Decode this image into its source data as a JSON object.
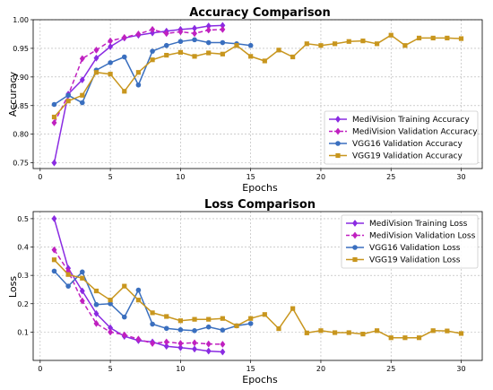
{
  "chart_data": [
    {
      "type": "line",
      "title": "Accuracy Comparison",
      "xlabel": "Epochs",
      "ylabel": "Accuracy",
      "xlim": [
        -0.5,
        31.5
      ],
      "ylim": [
        0.74,
        1.0
      ],
      "xticks": [
        0,
        5,
        10,
        15,
        20,
        25,
        30
      ],
      "yticks": [
        0.75,
        0.8,
        0.85,
        0.9,
        0.95,
        1.0
      ],
      "ytick_labels": [
        "0.75",
        "0.80",
        "0.85",
        "0.90",
        "0.95",
        "1.00"
      ],
      "grid": true,
      "legend_position": "lower-right",
      "series": [
        {
          "name": "MediVision Training Accuracy",
          "color": "#8a2be2",
          "marker": "diamond",
          "dashed": false,
          "x": [
            1,
            2,
            3,
            4,
            5,
            6,
            7,
            8,
            9,
            10,
            11,
            12,
            13
          ],
          "y": [
            0.75,
            0.87,
            0.895,
            0.933,
            0.953,
            0.968,
            0.973,
            0.977,
            0.98,
            0.983,
            0.985,
            0.989,
            0.99
          ]
        },
        {
          "name": "MediVision Validation Accuracy",
          "color": "#c020c0",
          "marker": "diamond",
          "dashed": true,
          "x": [
            1,
            2,
            3,
            4,
            5,
            6,
            7,
            8,
            9,
            10,
            11,
            12,
            13
          ],
          "y": [
            0.82,
            0.868,
            0.932,
            0.947,
            0.963,
            0.969,
            0.975,
            0.983,
            0.976,
            0.979,
            0.976,
            0.982,
            0.983
          ]
        },
        {
          "name": "VGG16 Validation Accuracy",
          "color": "#3a6fbf",
          "marker": "circle",
          "dashed": false,
          "x": [
            1,
            2,
            3,
            4,
            5,
            6,
            7,
            8,
            9,
            10,
            11,
            12,
            13,
            14,
            15
          ],
          "y": [
            0.852,
            0.868,
            0.855,
            0.912,
            0.925,
            0.935,
            0.886,
            0.945,
            0.955,
            0.962,
            0.965,
            0.96,
            0.96,
            0.958,
            0.955
          ]
        },
        {
          "name": "VGG19 Validation Accuracy",
          "color": "#c8961e",
          "marker": "square",
          "dashed": false,
          "x": [
            1,
            2,
            3,
            4,
            5,
            6,
            7,
            8,
            9,
            10,
            11,
            12,
            13,
            14,
            15,
            16,
            17,
            18,
            19,
            20,
            21,
            22,
            23,
            24,
            25,
            26,
            27,
            28,
            29,
            30
          ],
          "y": [
            0.83,
            0.858,
            0.868,
            0.908,
            0.905,
            0.875,
            0.908,
            0.93,
            0.938,
            0.943,
            0.936,
            0.942,
            0.94,
            0.955,
            0.936,
            0.928,
            0.947,
            0.935,
            0.958,
            0.955,
            0.958,
            0.962,
            0.963,
            0.958,
            0.973,
            0.955,
            0.968,
            0.968,
            0.968,
            0.967
          ]
        }
      ]
    },
    {
      "type": "line",
      "title": "Loss Comparison",
      "xlabel": "Epochs",
      "ylabel": "Loss",
      "xlim": [
        -0.5,
        31.5
      ],
      "ylim": [
        0.0,
        0.525
      ],
      "xticks": [
        0,
        5,
        10,
        15,
        20,
        25,
        30
      ],
      "yticks": [
        0.1,
        0.2,
        0.3,
        0.4,
        0.5
      ],
      "ytick_labels": [
        "0.1",
        "0.2",
        "0.3",
        "0.4",
        "0.5"
      ],
      "grid": true,
      "legend_position": "top-right",
      "series": [
        {
          "name": "MediVision Training Loss",
          "color": "#8a2be2",
          "marker": "diamond",
          "dashed": false,
          "x": [
            1,
            2,
            3,
            4,
            5,
            6,
            7,
            8,
            9,
            10,
            11,
            12,
            13
          ],
          "y": [
            0.5,
            0.325,
            0.245,
            0.165,
            0.115,
            0.085,
            0.07,
            0.065,
            0.05,
            0.045,
            0.04,
            0.033,
            0.03
          ]
        },
        {
          "name": "MediVision Validation Loss",
          "color": "#c020c0",
          "marker": "diamond",
          "dashed": true,
          "x": [
            1,
            2,
            3,
            4,
            5,
            6,
            7,
            8,
            9,
            10,
            11,
            12,
            13
          ],
          "y": [
            0.39,
            0.315,
            0.21,
            0.13,
            0.1,
            0.09,
            0.075,
            0.06,
            0.065,
            0.06,
            0.062,
            0.058,
            0.057
          ]
        },
        {
          "name": "VGG16 Validation Loss",
          "color": "#3a6fbf",
          "marker": "circle",
          "dashed": false,
          "x": [
            1,
            2,
            3,
            4,
            5,
            6,
            7,
            8,
            9,
            10,
            11,
            12,
            13,
            14,
            15
          ],
          "y": [
            0.315,
            0.262,
            0.312,
            0.197,
            0.2,
            0.153,
            0.248,
            0.128,
            0.113,
            0.108,
            0.105,
            0.118,
            0.107,
            0.122,
            0.13
          ]
        },
        {
          "name": "VGG19 Validation Loss",
          "color": "#c8961e",
          "marker": "square",
          "dashed": false,
          "x": [
            1,
            2,
            3,
            4,
            5,
            6,
            7,
            8,
            9,
            10,
            11,
            12,
            13,
            14,
            15,
            16,
            17,
            18,
            19,
            20,
            21,
            22,
            23,
            24,
            25,
            26,
            27,
            28,
            29,
            30
          ],
          "y": [
            0.355,
            0.303,
            0.29,
            0.245,
            0.213,
            0.262,
            0.213,
            0.168,
            0.155,
            0.14,
            0.145,
            0.145,
            0.148,
            0.122,
            0.148,
            0.162,
            0.112,
            0.183,
            0.097,
            0.105,
            0.098,
            0.098,
            0.093,
            0.105,
            0.08,
            0.08,
            0.08,
            0.105,
            0.104,
            0.095
          ]
        }
      ]
    }
  ]
}
